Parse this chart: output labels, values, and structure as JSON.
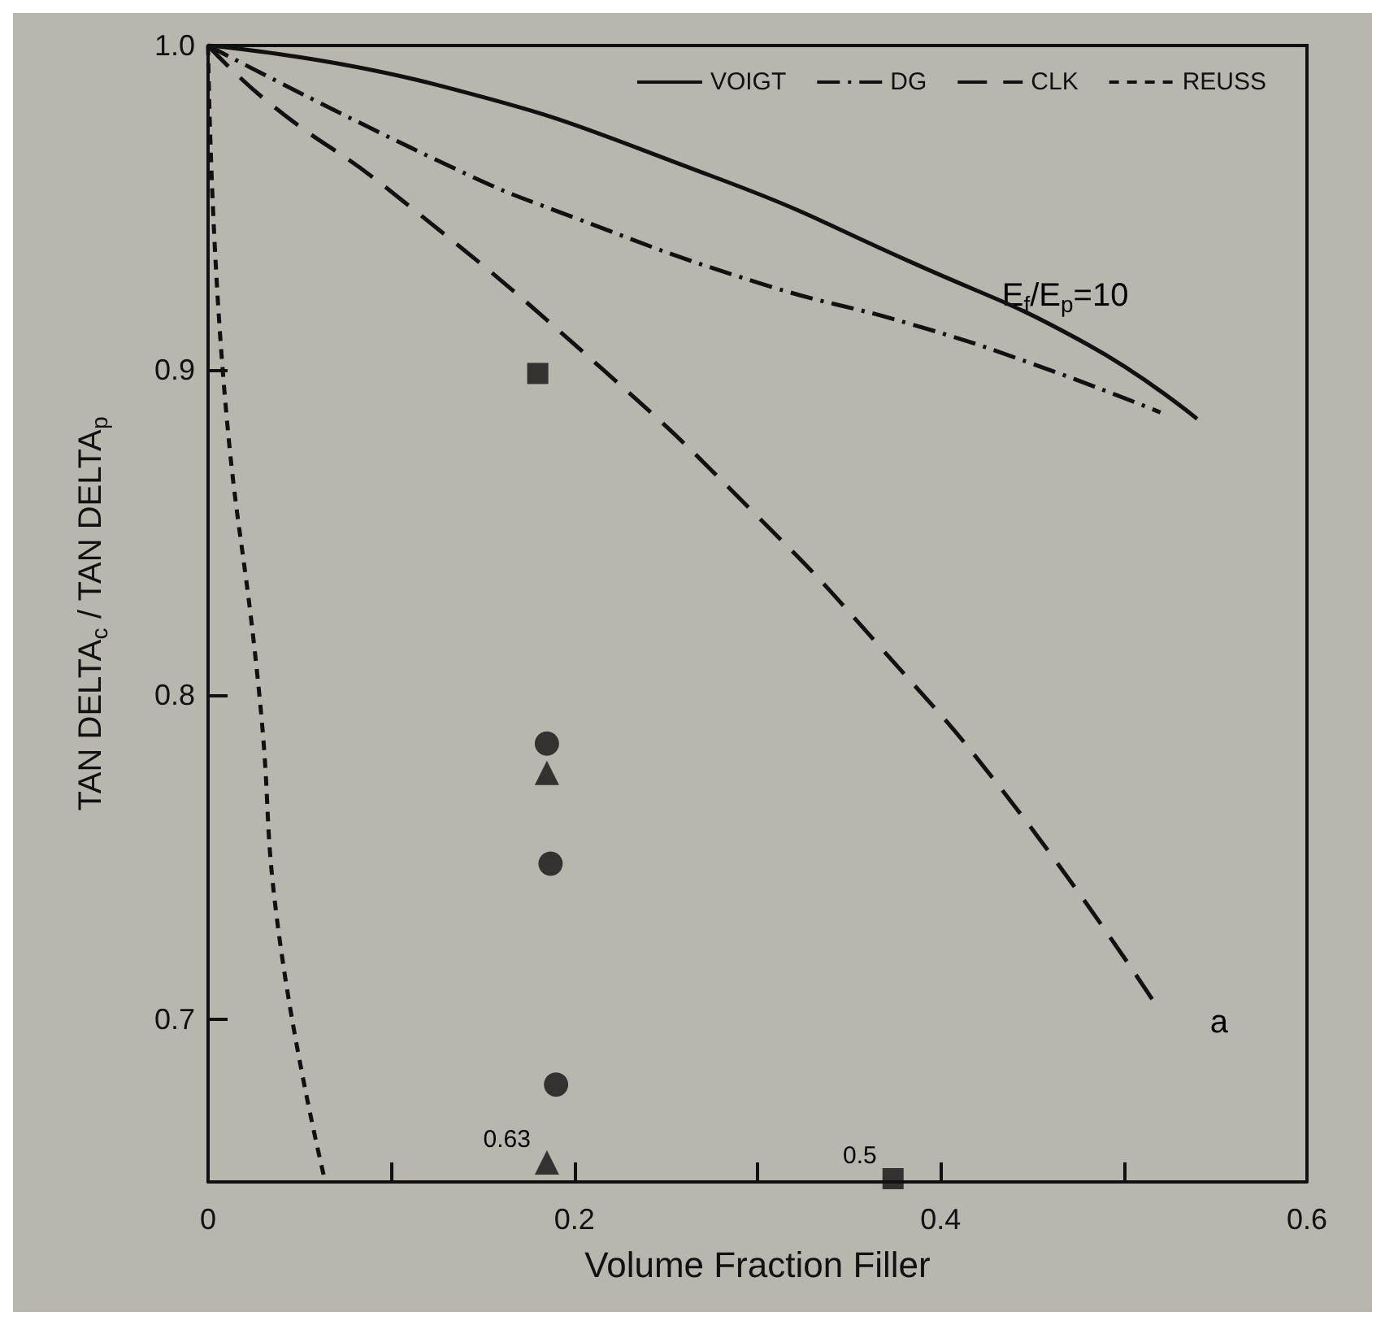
{
  "chart_data": {
    "type": "line",
    "xlabel": "Volume Fraction Filler",
    "ylabel": "TAN DELTA$_{c}$ / TAN DELTA$_{p}$",
    "xlim": [
      0,
      0.6
    ],
    "xticks": [
      0,
      {
        "value": 0.1,
        "label": null
      },
      0.2,
      {
        "value": 0.3,
        "label": null
      },
      0.4,
      {
        "value": 0.5,
        "label": null
      },
      0.6
    ],
    "ylim": [
      0.65,
      1.0
    ],
    "yticks": [
      0.7,
      0.8,
      0.9,
      {
        "value": 1.0,
        "label": "1.0"
      }
    ],
    "grid": false,
    "legend": "top",
    "marker": "none",
    "series": [
      {
        "name": "VOIGT",
        "line_style": "solid",
        "color": "#111111",
        "x": [
          0,
          0.124,
          0.274,
          0.385,
          0.48,
          0.54
        ],
        "values": [
          1.0,
          0.988,
          0.96,
          0.933,
          0.908,
          0.885
        ]
      },
      {
        "name": "DG",
        "line_style": "dashdot",
        "color": "#111111",
        "x": [
          0,
          0.135,
          0.2,
          0.3,
          0.385,
          0.45,
          0.52
        ],
        "values": [
          1.0,
          0.962,
          0.947,
          0.927,
          0.914,
          0.902,
          0.887
        ]
      },
      {
        "name": "CLK",
        "line_style": "dashed",
        "color": "#111111",
        "x": [
          0,
          0.034,
          0.1,
          0.216,
          0.3,
          0.365,
          0.44,
          0.517
        ],
        "values": [
          1.0,
          0.982,
          0.955,
          0.9,
          0.855,
          0.816,
          0.766,
          0.705
        ]
      },
      {
        "name": "REUSS",
        "line_style": "dotted",
        "color": "#111111",
        "x": [
          0,
          0.008,
          0.028,
          0.039,
          0.064
        ],
        "values": [
          1.0,
          0.9,
          0.8,
          0.725,
          0.65
        ]
      },
      {
        "type": "scatter",
        "marker": "square",
        "color": "#111111",
        "x": [
          0.18
        ],
        "values": [
          0.899
        ]
      },
      {
        "type": "scatter",
        "marker": "circle",
        "color": "#111111",
        "x": [
          0.185
        ],
        "values": [
          0.785
        ]
      },
      {
        "type": "scatter",
        "marker": "triangle",
        "color": "#111111",
        "x": [
          0.185
        ],
        "values": [
          0.776
        ]
      },
      {
        "type": "scatter",
        "marker": "circle",
        "color": "#111111",
        "x": [
          0.187
        ],
        "values": [
          0.748
        ]
      },
      {
        "type": "scatter",
        "marker": "circle",
        "color": "#111111",
        "x": [
          0.19
        ],
        "values": [
          0.68
        ]
      },
      {
        "type": "scatter",
        "marker": "triangle",
        "color": "#111111",
        "x": [
          0.185
        ],
        "values": [
          0.656
        ]
      },
      {
        "type": "scatter",
        "marker": "square",
        "color": "#111111",
        "x": [
          0.374
        ],
        "values": [
          0.651
        ]
      }
    ],
    "annotations": [
      "E$_{f}$/E$_{p}$=10",
      "a",
      {
        "text": "0.63",
        "x": 0.185,
        "y": 0.656
      },
      {
        "text": "0.5",
        "x": 0.374,
        "y": 0.651
      }
    ]
  }
}
